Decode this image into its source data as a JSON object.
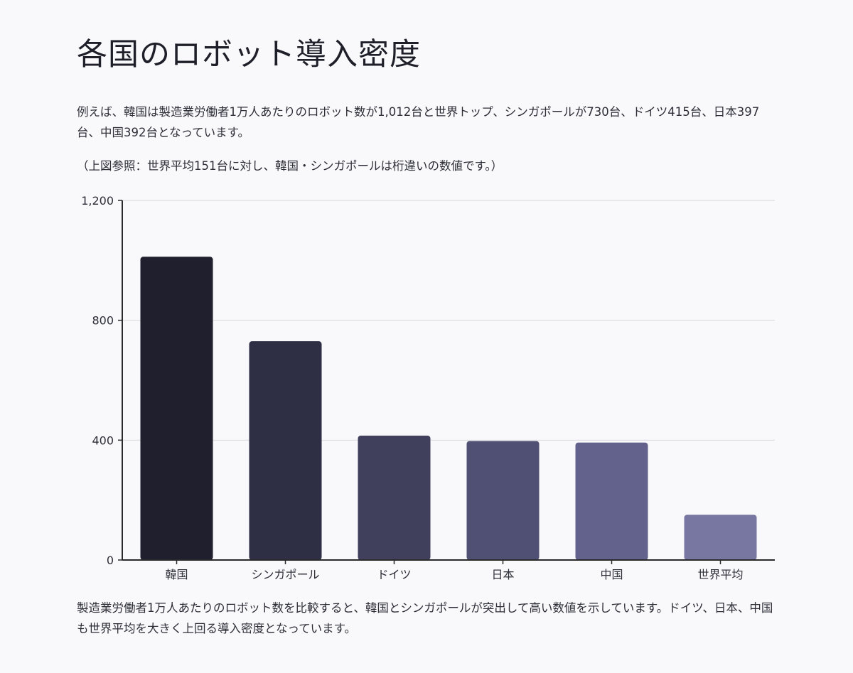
{
  "title": "各国のロボット導入密度",
  "intro": "例えば、韓国は製造業労働者1万人あたりのロボット数が1,012台と世界トップ、シンガポールが730台、ドイツ415台、日本397台、中国392台となっています。",
  "note": "（上図参照：世界平均151台に対し、韓国・シンガポールは桁違いの数値です。）",
  "summary": "製造業労働者1万人あたりのロボット数を比較すると、韓国とシンガポールが突出して高い数値を示しています。ドイツ、日本、中国も世界平均を大きく上回る導入密度となっています。",
  "chart_data": {
    "type": "bar",
    "title": "",
    "xlabel": "",
    "ylabel": "",
    "categories": [
      "韓国",
      "シンガポール",
      "ドイツ",
      "日本",
      "中国",
      "世界平均"
    ],
    "values": [
      1012,
      730,
      415,
      397,
      392,
      151
    ],
    "ylim": [
      0,
      1200
    ],
    "yticks": [
      0,
      400,
      800,
      1200
    ],
    "ytick_labels": [
      "0",
      "400",
      "800",
      "1,200"
    ],
    "grid": true,
    "legend": "none",
    "bar_colors": [
      "#1f1f2e",
      "#2e2e44",
      "#403f5c",
      "#504f74",
      "#63628c",
      "#7877a2"
    ]
  }
}
